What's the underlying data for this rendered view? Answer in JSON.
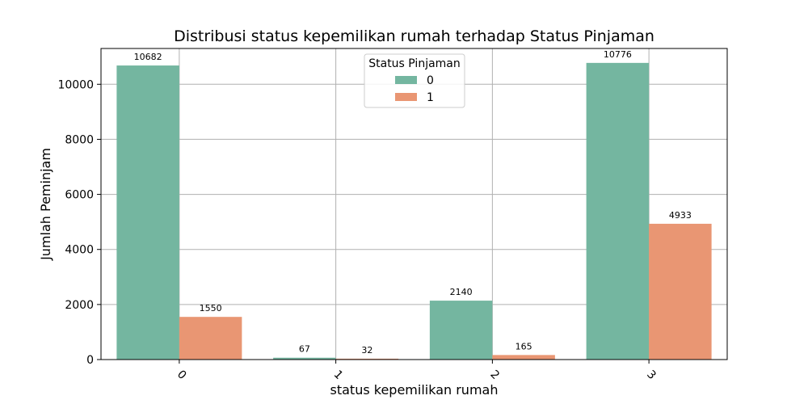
{
  "chart_data": {
    "type": "bar",
    "title": "Distribusi status kepemilikan rumah terhadap Status Pinjaman",
    "xlabel": "status kepemilikan rumah",
    "ylabel": "Jumlah Peminjam",
    "categories": [
      "0",
      "1",
      "2",
      "3"
    ],
    "series": [
      {
        "name": "0",
        "values": [
          10682,
          67,
          2140,
          10776
        ],
        "color": "#74b6a0"
      },
      {
        "name": "1",
        "values": [
          1550,
          32,
          165,
          4933
        ],
        "color": "#e99673"
      }
    ],
    "ylim": [
      0,
      11300
    ],
    "yticks": [
      0,
      2000,
      4000,
      6000,
      8000,
      10000
    ],
    "grid": true,
    "legend": {
      "title": "Status Pinjaman",
      "position": "top-center"
    }
  }
}
